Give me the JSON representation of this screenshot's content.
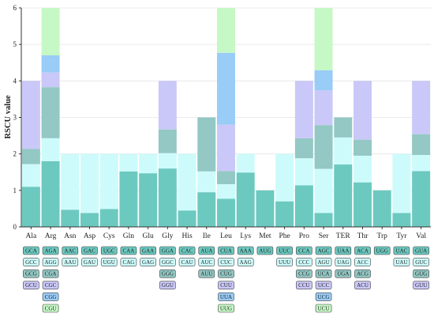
{
  "colors": {
    "c1": "#6cc9c0",
    "c2": "#cdfbfb",
    "c3": "#93c8c4",
    "c4": "#cac8f8",
    "c5": "#99ccf7",
    "c6": "#c6f8c6",
    "axis": "#333333"
  },
  "chart_data": {
    "type": "bar",
    "stacked": true,
    "title": "",
    "xlabel": "",
    "ylabel": "RSCU value",
    "ylim": [
      0,
      6
    ],
    "yticks": [
      0,
      1,
      2,
      3,
      4,
      5,
      6
    ],
    "categories": [
      {
        "label": "Ala",
        "segments": [
          {
            "codon": "GCA",
            "value": 1.1,
            "color": "c1"
          },
          {
            "codon": "GCC",
            "value": 0.62,
            "color": "c2"
          },
          {
            "codon": "GCG",
            "value": 0.42,
            "color": "c3"
          },
          {
            "codon": "GCU",
            "value": 1.86,
            "color": "c4"
          }
        ]
      },
      {
        "label": "Arg",
        "segments": [
          {
            "codon": "AGA",
            "value": 1.8,
            "color": "c1"
          },
          {
            "codon": "AGG",
            "value": 0.63,
            "color": "c2"
          },
          {
            "codon": "CGA",
            "value": 1.4,
            "color": "c3"
          },
          {
            "codon": "CGC",
            "value": 0.4,
            "color": "c4"
          },
          {
            "codon": "CGG",
            "value": 0.47,
            "color": "c5"
          },
          {
            "codon": "CGU",
            "value": 1.3,
            "color": "c6"
          }
        ]
      },
      {
        "label": "Asn",
        "segments": [
          {
            "codon": "AAC",
            "value": 0.47,
            "color": "c1"
          },
          {
            "codon": "AAU",
            "value": 1.53,
            "color": "c2"
          }
        ]
      },
      {
        "label": "Asp",
        "segments": [
          {
            "codon": "GAC",
            "value": 0.38,
            "color": "c1"
          },
          {
            "codon": "GAU",
            "value": 1.62,
            "color": "c2"
          }
        ]
      },
      {
        "label": "Cys",
        "segments": [
          {
            "codon": "UGC",
            "value": 0.49,
            "color": "c1"
          },
          {
            "codon": "UGU",
            "value": 1.51,
            "color": "c2"
          }
        ]
      },
      {
        "label": "Gln",
        "segments": [
          {
            "codon": "CAA",
            "value": 1.52,
            "color": "c1"
          },
          {
            "codon": "CAG",
            "value": 0.48,
            "color": "c2"
          }
        ]
      },
      {
        "label": "Glu",
        "segments": [
          {
            "codon": "GAA",
            "value": 1.47,
            "color": "c1"
          },
          {
            "codon": "GAG",
            "value": 0.53,
            "color": "c2"
          }
        ]
      },
      {
        "label": "Gly",
        "segments": [
          {
            "codon": "GGA",
            "value": 1.6,
            "color": "c1"
          },
          {
            "codon": "GGC",
            "value": 0.42,
            "color": "c2"
          },
          {
            "codon": "GGG",
            "value": 0.65,
            "color": "c3"
          },
          {
            "codon": "GGU",
            "value": 1.33,
            "color": "c4"
          }
        ]
      },
      {
        "label": "His",
        "segments": [
          {
            "codon": "CAC",
            "value": 0.45,
            "color": "c1"
          },
          {
            "codon": "CAU",
            "value": 1.55,
            "color": "c2"
          }
        ]
      },
      {
        "label": "Ile",
        "segments": [
          {
            "codon": "AUA",
            "value": 0.95,
            "color": "c1"
          },
          {
            "codon": "AUC",
            "value": 0.57,
            "color": "c2"
          },
          {
            "codon": "AUU",
            "value": 1.48,
            "color": "c3"
          }
        ]
      },
      {
        "label": "Leu",
        "segments": [
          {
            "codon": "CUA",
            "value": 0.77,
            "color": "c1"
          },
          {
            "codon": "CUC",
            "value": 0.4,
            "color": "c2"
          },
          {
            "codon": "CUG",
            "value": 0.36,
            "color": "c3"
          },
          {
            "codon": "CUU",
            "value": 1.27,
            "color": "c4"
          },
          {
            "codon": "UUA",
            "value": 1.97,
            "color": "c5"
          },
          {
            "codon": "UUG",
            "value": 1.23,
            "color": "c6"
          }
        ]
      },
      {
        "label": "Lys",
        "segments": [
          {
            "codon": "AAA",
            "value": 1.49,
            "color": "c1"
          },
          {
            "codon": "AAG",
            "value": 0.51,
            "color": "c2"
          }
        ]
      },
      {
        "label": "Met",
        "segments": [
          {
            "codon": "AUG",
            "value": 1.0,
            "color": "c1"
          }
        ]
      },
      {
        "label": "Phe",
        "segments": [
          {
            "codon": "UUC",
            "value": 0.7,
            "color": "c1"
          },
          {
            "codon": "UUU",
            "value": 1.3,
            "color": "c2"
          }
        ]
      },
      {
        "label": "Pro",
        "segments": [
          {
            "codon": "CCA",
            "value": 1.14,
            "color": "c1"
          },
          {
            "codon": "CCC",
            "value": 0.74,
            "color": "c2"
          },
          {
            "codon": "CCG",
            "value": 0.55,
            "color": "c3"
          },
          {
            "codon": "CCU",
            "value": 1.57,
            "color": "c4"
          }
        ]
      },
      {
        "label": "Ser",
        "segments": [
          {
            "codon": "AGC",
            "value": 0.38,
            "color": "c1"
          },
          {
            "codon": "AGU",
            "value": 1.21,
            "color": "c2"
          },
          {
            "codon": "UCA",
            "value": 1.2,
            "color": "c3"
          },
          {
            "codon": "UCC",
            "value": 0.95,
            "color": "c4"
          },
          {
            "codon": "UCG",
            "value": 0.55,
            "color": "c5"
          },
          {
            "codon": "UCU",
            "value": 1.71,
            "color": "c6"
          }
        ]
      },
      {
        "label": "TER",
        "segments": [
          {
            "codon": "UAA",
            "value": 1.71,
            "color": "c1"
          },
          {
            "codon": "UAG",
            "value": 0.74,
            "color": "c2"
          },
          {
            "codon": "UGA",
            "value": 0.55,
            "color": "c3"
          }
        ]
      },
      {
        "label": "Thr",
        "segments": [
          {
            "codon": "ACA",
            "value": 1.22,
            "color": "c1"
          },
          {
            "codon": "ACC",
            "value": 0.73,
            "color": "c2"
          },
          {
            "codon": "ACG",
            "value": 0.44,
            "color": "c3"
          },
          {
            "codon": "ACU",
            "value": 1.61,
            "color": "c4"
          }
        ]
      },
      {
        "label": "Trp",
        "segments": [
          {
            "codon": "UGG",
            "value": 1.0,
            "color": "c1"
          }
        ]
      },
      {
        "label": "Tyr",
        "segments": [
          {
            "codon": "UAC",
            "value": 0.38,
            "color": "c1"
          },
          {
            "codon": "UAU",
            "value": 1.62,
            "color": "c2"
          }
        ]
      },
      {
        "label": "Val",
        "segments": [
          {
            "codon": "GUA",
            "value": 1.53,
            "color": "c1"
          },
          {
            "codon": "GUC",
            "value": 0.44,
            "color": "c2"
          },
          {
            "codon": "GUG",
            "value": 0.57,
            "color": "c3"
          },
          {
            "codon": "GUU",
            "value": 1.46,
            "color": "c4"
          }
        ]
      }
    ]
  }
}
